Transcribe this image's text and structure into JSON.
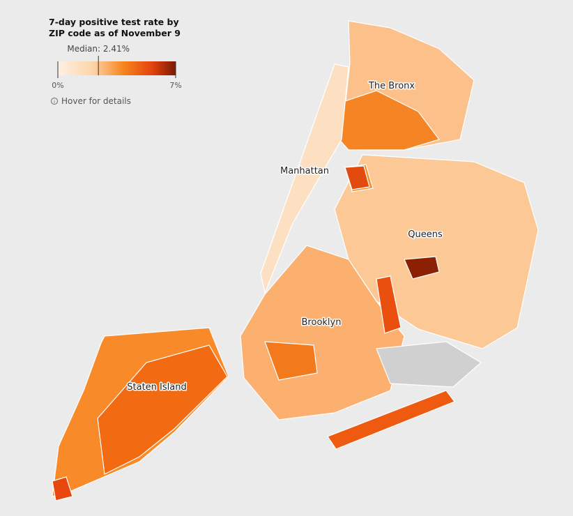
{
  "legend": {
    "title": "7-day positive test rate by ZIP code as of November 9",
    "median_label": "Median: 2.41%",
    "median": 2.41,
    "ticks": [
      {
        "value": 0,
        "label": "0%"
      },
      {
        "value": 7,
        "label": "7%"
      }
    ]
  },
  "hint": "Hover for details",
  "boroughs": [
    "The Bronx",
    "Manhattan",
    "Queens",
    "Brooklyn",
    "Staten Island"
  ]
}
